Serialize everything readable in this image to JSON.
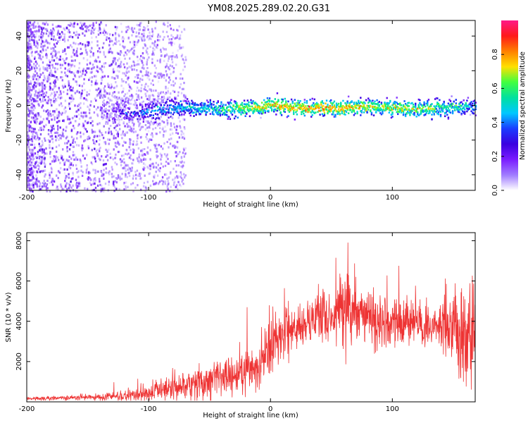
{
  "figure_title": "YM08.2025.289.02.20.G31",
  "colors": {
    "signal_line": "#ee3333",
    "frame": "#000000",
    "background": "#ffffff",
    "colormap": [
      "#ffffff",
      "#a07cff",
      "#7a1cff",
      "#3a00e0",
      "#1a3cff",
      "#00c8ff",
      "#00e0a0",
      "#40ff40",
      "#ffe000",
      "#ff8000",
      "#ff1a1a",
      "#ff1a88"
    ]
  },
  "chart_data": [
    {
      "id": "spectrogram",
      "type": "heatmap",
      "title": "YM08.2025.289.02.20.G31",
      "xlabel": "Height of straight line (km)",
      "ylabel": "Frequency (Hz)",
      "xlim": [
        -200,
        168
      ],
      "ylim": [
        -49,
        49
      ],
      "x_ticks": [
        -200,
        -100,
        0,
        100
      ],
      "y_ticks": [
        -40,
        -20,
        0,
        20,
        40
      ],
      "colorbar": {
        "label": "Normalized spectral amplitude",
        "range": [
          0,
          1
        ],
        "ticks": [
          0.0,
          0.2,
          0.4,
          0.6,
          0.8
        ]
      },
      "ridge": {
        "description_points_x": [
          -200,
          -130,
          -115,
          -100,
          -80,
          -60,
          -40,
          -20,
          0,
          20,
          40,
          60,
          80,
          100,
          120,
          140,
          160,
          168
        ],
        "center_freq": [
          0,
          -2,
          -4,
          -3,
          -1,
          -1,
          -2,
          -1,
          1,
          -1,
          -1,
          -1,
          0,
          -1,
          -2,
          -1,
          0,
          0
        ],
        "amplitude": [
          0.1,
          0.12,
          0.3,
          0.42,
          0.48,
          0.5,
          0.58,
          0.7,
          0.78,
          0.8,
          0.82,
          0.8,
          0.7,
          0.72,
          0.68,
          0.6,
          0.52,
          0.45
        ]
      }
    },
    {
      "id": "snr",
      "type": "line",
      "title": "",
      "xlabel": "Height of straight line (km)",
      "ylabel": "SNR (10 * v/v)",
      "xlim": [
        -200,
        168
      ],
      "ylim": [
        0,
        8400
      ],
      "x_ticks": [
        -200,
        -100,
        0,
        100
      ],
      "y_ticks": [
        2000,
        4000,
        6000,
        8000
      ],
      "series": [
        {
          "name": "SNR",
          "x": [
            -200,
            -180,
            -160,
            -140,
            -120,
            -100,
            -90,
            -80,
            -70,
            -60,
            -50,
            -40,
            -30,
            -20,
            -10,
            0,
            10,
            20,
            30,
            40,
            50,
            60,
            70,
            80,
            90,
            100,
            110,
            120,
            130,
            140,
            150,
            160,
            168
          ],
          "values": [
            150,
            180,
            200,
            230,
            300,
            450,
            550,
            700,
            800,
            900,
            1100,
            1300,
            1400,
            1500,
            1900,
            2700,
            3400,
            3800,
            4100,
            4300,
            4500,
            4500,
            4600,
            4300,
            4000,
            4000,
            3900,
            3800,
            3800,
            3700,
            3700,
            3500,
            3300
          ],
          "spread": [
            80,
            100,
            120,
            150,
            250,
            400,
            450,
            550,
            650,
            750,
            800,
            900,
            1000,
            1100,
            1200,
            1300,
            1200,
            1100,
            1100,
            1200,
            1300,
            1400,
            1500,
            1500,
            1400,
            1300,
            1200,
            1000,
            1000,
            1200,
            1800,
            2500,
            2800
          ]
        }
      ]
    }
  ]
}
